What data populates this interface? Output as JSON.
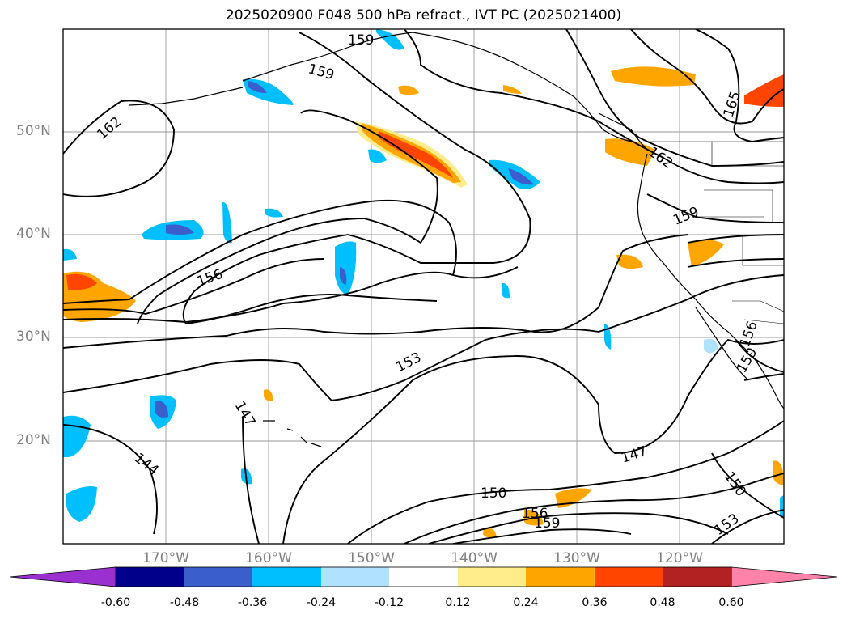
{
  "title": "2025020900 F048 500 hPa refract., IVT PC (2025021400)",
  "lat_labels": [
    "50°N",
    "40°N",
    "30°N",
    "20°N"
  ],
  "lon_labels": [
    "170°W",
    "160°W",
    "150°W",
    "140°W",
    "130°W",
    "120°W"
  ],
  "contour_labels": [
    "159",
    "159",
    "162",
    "165",
    "162",
    "159",
    "156",
    "153",
    "147",
    "144",
    "147",
    "150",
    "150",
    "156",
    "159",
    "153",
    "156",
    "159"
  ],
  "colorbar": {
    "ticks": [
      "-0.60",
      "-0.48",
      "-0.36",
      "-0.24",
      "-0.12",
      "0.12",
      "0.24",
      "0.36",
      "0.48",
      "0.60"
    ],
    "colors": [
      "#9b30d0",
      "#00008b",
      "#3a5fcd",
      "#00bfff",
      "#b0e2ff",
      "#ffffff",
      "#ffec8b",
      "#ffa500",
      "#ff4500",
      "#b22222",
      "#ff82ab"
    ]
  }
}
